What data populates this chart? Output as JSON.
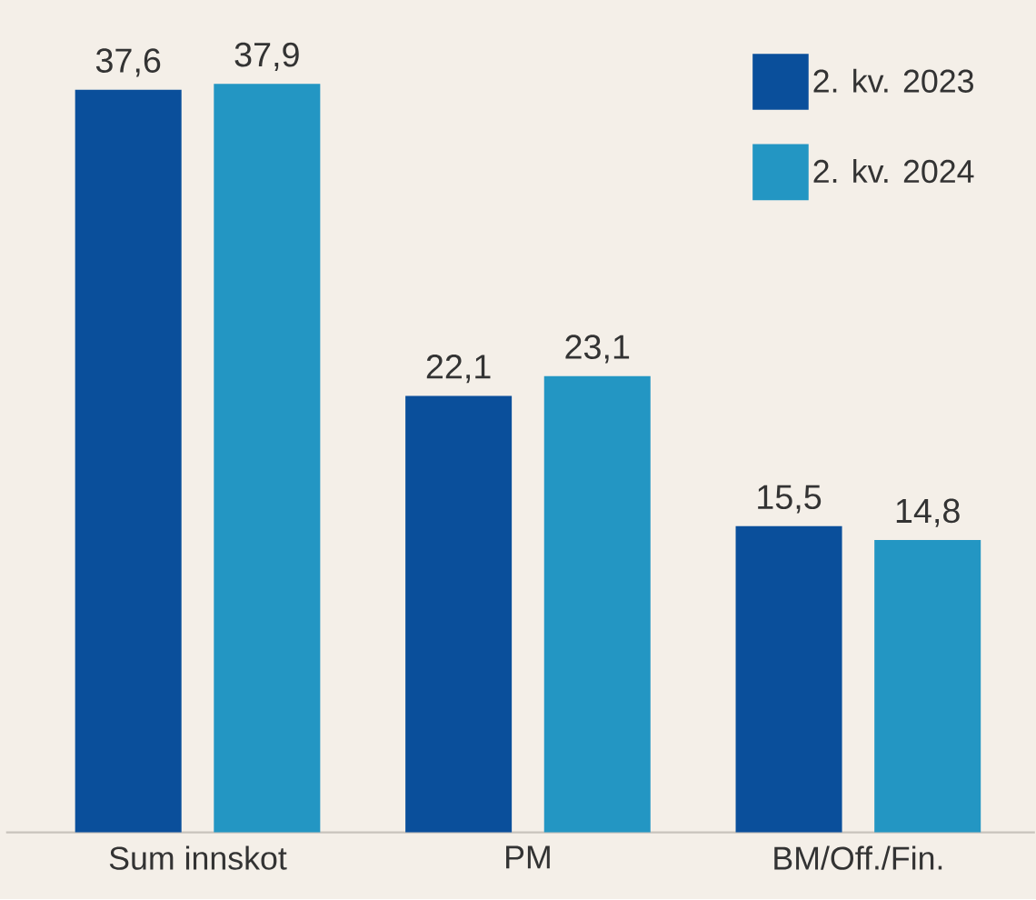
{
  "chart_data": {
    "type": "bar",
    "categories": [
      "Sum innskot",
      "PM",
      "BM/Off./Fin."
    ],
    "series": [
      {
        "name": "2. kv. 2023",
        "color": "#0a4f9b",
        "values": [
          37.6,
          22.1,
          15.5
        ],
        "value_labels": [
          "37,6",
          "22,1",
          "15,5"
        ]
      },
      {
        "name": "2. kv. 2024",
        "color": "#2396c3",
        "values": [
          37.9,
          23.1,
          14.8
        ],
        "value_labels": [
          "37,9",
          "23,1",
          "14,8"
        ]
      }
    ],
    "legend": "top right"
  }
}
